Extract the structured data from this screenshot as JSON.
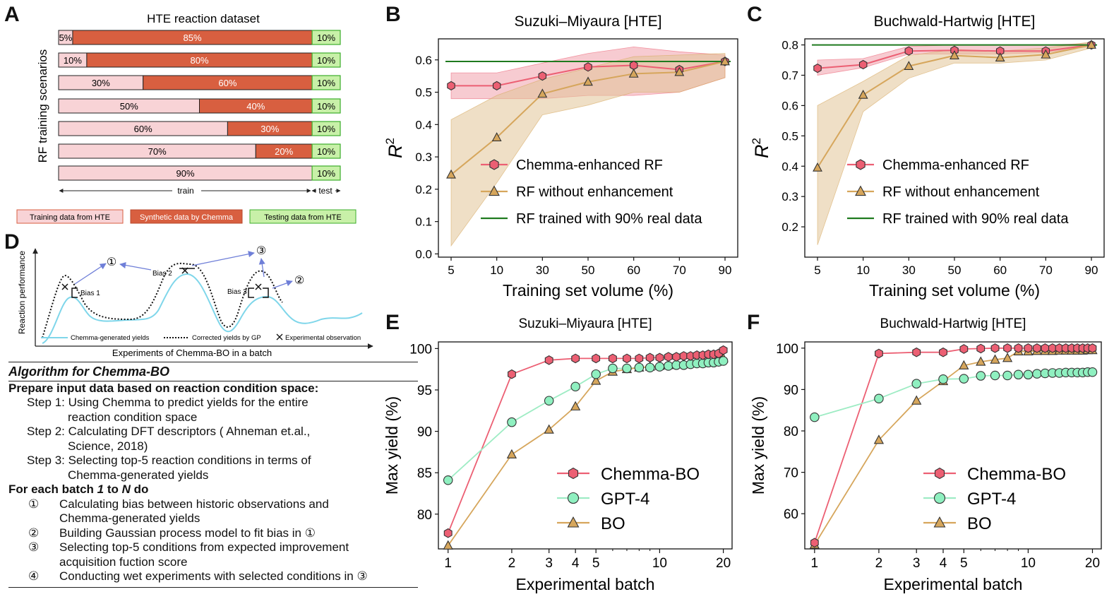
{
  "panel_letters": {
    "A": "A",
    "B": "B",
    "C": "C",
    "D": "D",
    "E": "E",
    "F": "F"
  },
  "panel_a": {
    "title": "HTE reaction dataset",
    "ylabel": "RF training scenarios",
    "train_label": "train",
    "test_label": "test",
    "legend": [
      "Training data from HTE",
      "Synthetic data by Chemma",
      "Testing data from HTE"
    ],
    "colors": {
      "train": "#f8d3d6",
      "synthetic": "#d85f40",
      "test": "#c8f0a8"
    },
    "rows": [
      {
        "train_pct": 5,
        "synthetic_pct": 85,
        "test_pct": 10,
        "train_label": "5%",
        "synthetic_label": "85%",
        "test_label": "10%"
      },
      {
        "train_pct": 10,
        "synthetic_pct": 80,
        "test_pct": 10,
        "train_label": "10%",
        "synthetic_label": "80%",
        "test_label": "10%"
      },
      {
        "train_pct": 30,
        "synthetic_pct": 60,
        "test_pct": 10,
        "train_label": "30%",
        "synthetic_label": "60%",
        "test_label": "10%"
      },
      {
        "train_pct": 50,
        "synthetic_pct": 40,
        "test_pct": 10,
        "train_label": "50%",
        "synthetic_label": "40%",
        "test_label": "10%"
      },
      {
        "train_pct": 60,
        "synthetic_pct": 30,
        "test_pct": 10,
        "train_label": "60%",
        "synthetic_label": "30%",
        "test_label": "10%"
      },
      {
        "train_pct": 70,
        "synthetic_pct": 20,
        "test_pct": 10,
        "train_label": "70%",
        "synthetic_label": "20%",
        "test_label": "10%"
      },
      {
        "train_pct": 90,
        "synthetic_pct": 0,
        "test_pct": 10,
        "train_label": "90%",
        "synthetic_label": "",
        "test_label": "10%"
      }
    ]
  },
  "panel_d": {
    "ylabel": "Reaction performance",
    "xlabel": "Experiments of Chemma-BO in a batch",
    "bias_labels": [
      "Bias 1",
      "Bias 2",
      "Bias 3"
    ],
    "step_marks": [
      "①",
      "②",
      "③"
    ],
    "legend": [
      "Chemma-generated yields",
      "Corrected yields by GP",
      "Experimental observation"
    ]
  },
  "algorithm": {
    "title": "Algorithm for Chemma-BO",
    "prepare": "Prepare input data based on reaction condition space:",
    "steps": [
      {
        "label": "Step 1: Using Chemma to predict yields for the entire",
        "cont": "reaction condition space"
      },
      {
        "label": "Step 2: Calculating DFT descriptors ( Ahneman et.al.,",
        "cont": "Science, 2018)"
      },
      {
        "label": "Step 3: Selecting top-5 reaction conditions in terms of",
        "cont": "Chemma-generated yields"
      }
    ],
    "loop_a": "For each batch ",
    "loop_b": "1",
    "loop_c": " to ",
    "loop_d": "N",
    "loop_e": " do",
    "loop_steps": [
      {
        "num": "①",
        "text": "Calculating bias between historic observations and",
        "cont": "Chemma-generated yields"
      },
      {
        "num": "②",
        "text": "Building Gaussian process model to fit bias in ①",
        "cont": ""
      },
      {
        "num": "③",
        "text": "Selecting top-5 conditions from expected improvement",
        "cont": "acquisition fuction score"
      },
      {
        "num": "④",
        "text": "Conducting wet experiments with selected conditions in ③",
        "cont": ""
      }
    ]
  },
  "chart_data": [
    {
      "id": "B",
      "type": "line",
      "title": "Suzuki–Miyaura [HTE]",
      "xlabel": "Training set volume (%)",
      "ylabel": "R",
      "ylabel_sup": "2",
      "categories": [
        "5",
        "10",
        "30",
        "50",
        "60",
        "70",
        "90"
      ],
      "ylim": [
        -0.01,
        0.665
      ],
      "yticks": [
        0.0,
        0.1,
        0.2,
        0.3,
        0.4,
        0.5,
        0.6
      ],
      "ytick_labels": [
        "0.0",
        "0.1",
        "0.2",
        "0.3",
        "0.4",
        "0.5",
        "0.6"
      ],
      "series": [
        {
          "name": "Chemma-enhanced RF",
          "marker": "hexagon",
          "color": "#ec5f73",
          "fill": "#f0a1ac",
          "values": [
            0.52,
            0.52,
            0.55,
            0.578,
            0.583,
            0.57,
            0.595
          ],
          "lower": [
            0.48,
            0.48,
            0.48,
            0.49,
            0.49,
            0.5,
            0.545
          ],
          "upper": [
            0.56,
            0.56,
            0.59,
            0.62,
            0.64,
            0.625,
            0.615
          ]
        },
        {
          "name": "RF without enhancement",
          "marker": "triangle",
          "color": "#d6a65c",
          "fill": "#e2c597",
          "values": [
            0.245,
            0.36,
            0.495,
            0.532,
            0.557,
            0.562,
            0.595
          ],
          "lower": [
            0.025,
            0.22,
            0.43,
            0.46,
            0.5,
            0.5,
            0.545
          ],
          "upper": [
            0.415,
            0.49,
            0.54,
            0.575,
            0.61,
            0.615,
            0.62
          ]
        },
        {
          "name": "RF trained with 90% real data",
          "marker": "none",
          "color": "#1f7a1f",
          "values": [
            0.595,
            0.595,
            0.595,
            0.595,
            0.595,
            0.595,
            0.595
          ]
        }
      ]
    },
    {
      "id": "C",
      "type": "line",
      "title": "Buchwald-Hartwig [HTE]",
      "xlabel": "Training set volume (%)",
      "ylabel": "R",
      "ylabel_sup": "2",
      "categories": [
        "5",
        "10",
        "30",
        "50",
        "60",
        "70",
        "90"
      ],
      "ylim": [
        0.1,
        0.82
      ],
      "yticks": [
        0.2,
        0.3,
        0.4,
        0.5,
        0.6,
        0.7,
        0.8
      ],
      "ytick_labels": [
        "0.2",
        "0.3",
        "0.4",
        "0.5",
        "0.6",
        "0.7",
        "0.8"
      ],
      "series": [
        {
          "name": "Chemma-enhanced RF",
          "marker": "hexagon",
          "color": "#ec5f73",
          "fill": "#f0a1ac",
          "values": [
            0.723,
            0.735,
            0.78,
            0.782,
            0.78,
            0.78,
            0.8
          ],
          "lower": [
            0.7,
            0.725,
            0.77,
            0.77,
            0.77,
            0.775,
            0.795
          ],
          "upper": [
            0.75,
            0.755,
            0.795,
            0.8,
            0.8,
            0.8,
            0.805
          ]
        },
        {
          "name": "RF without enhancement",
          "marker": "triangle",
          "color": "#d6a65c",
          "fill": "#e2c597",
          "values": [
            0.395,
            0.635,
            0.73,
            0.765,
            0.758,
            0.768,
            0.8
          ],
          "lower": [
            0.14,
            0.58,
            0.69,
            0.74,
            0.74,
            0.75,
            0.79
          ],
          "upper": [
            0.6,
            0.68,
            0.765,
            0.785,
            0.78,
            0.79,
            0.81
          ]
        },
        {
          "name": "RF trained with 90% real data",
          "marker": "none",
          "color": "#1f7a1f",
          "values": [
            0.8,
            0.8,
            0.8,
            0.8,
            0.8,
            0.8,
            0.8
          ]
        }
      ]
    },
    {
      "id": "E",
      "type": "line",
      "xscale": "log",
      "title": "Suzuki–Miyaura [HTE]",
      "xlabel": "Experimental batch",
      "ylabel": "Max yield (%)",
      "xlim": [
        0.9,
        22
      ],
      "xticks": [
        1,
        2,
        3,
        4,
        5,
        10,
        20
      ],
      "xtick_labels": [
        "1",
        "2",
        "3",
        "4",
        "5",
        "10",
        "20"
      ],
      "ylim": [
        75.8,
        100.8
      ],
      "yticks": [
        80,
        85,
        90,
        95,
        100
      ],
      "ytick_labels": [
        "80",
        "85",
        "90",
        "95",
        "100"
      ],
      "x": [
        1,
        2,
        3,
        4,
        5,
        6,
        7,
        8,
        9,
        10,
        11,
        12,
        13,
        14,
        15,
        16,
        17,
        18,
        19,
        20
      ],
      "series": [
        {
          "name": "Chemma-BO",
          "marker": "hexagon",
          "color": "#ec5f73",
          "values": [
            77.7,
            96.9,
            98.6,
            98.8,
            98.8,
            98.8,
            98.8,
            98.8,
            98.9,
            98.9,
            99.0,
            99.0,
            99.1,
            99.1,
            99.2,
            99.2,
            99.3,
            99.3,
            99.4,
            99.8
          ]
        },
        {
          "name": "GPT-4",
          "marker": "circle",
          "color": "#7ee6b0",
          "values": [
            84.1,
            91.1,
            93.7,
            95.4,
            96.9,
            97.6,
            97.6,
            97.7,
            97.7,
            97.8,
            97.9,
            98.0,
            98.0,
            98.1,
            98.2,
            98.2,
            98.3,
            98.3,
            98.4,
            98.5
          ]
        },
        {
          "name": "BO",
          "marker": "triangle",
          "color": "#d6a65c",
          "values": [
            76.2,
            87.2,
            90.2,
            93.0,
            96.1,
            97.2,
            97.5,
            97.7,
            97.8,
            97.9,
            98.0,
            98.1,
            98.2,
            98.3,
            98.4,
            98.5,
            98.5,
            98.6,
            98.6,
            98.8
          ]
        }
      ]
    },
    {
      "id": "F",
      "type": "line",
      "xscale": "log",
      "title": "Buchwald-Hartwig [HTE]",
      "xlabel": "Experimental batch",
      "ylabel": "Max yield (%)",
      "xlim": [
        0.9,
        22
      ],
      "xticks": [
        1,
        2,
        3,
        4,
        5,
        10,
        20
      ],
      "xtick_labels": [
        "1",
        "2",
        "3",
        "4",
        "5",
        "10",
        "20"
      ],
      "ylim": [
        51.5,
        101.5
      ],
      "yticks": [
        60,
        70,
        80,
        90,
        100
      ],
      "ytick_labels": [
        "60",
        "70",
        "80",
        "90",
        "100"
      ],
      "x": [
        1,
        2,
        3,
        4,
        5,
        6,
        7,
        8,
        9,
        10,
        11,
        12,
        13,
        14,
        15,
        16,
        17,
        18,
        19,
        20
      ],
      "series": [
        {
          "name": "Chemma-BO",
          "marker": "hexagon",
          "color": "#ec5f73",
          "values": [
            53.0,
            98.7,
            99.0,
            99.0,
            99.8,
            99.9,
            100,
            100,
            100,
            100,
            100,
            100,
            100,
            100,
            100,
            100,
            100,
            100,
            100,
            100
          ]
        },
        {
          "name": "GPT-4",
          "marker": "circle",
          "color": "#7ee6b0",
          "values": [
            83.3,
            87.8,
            91.4,
            92.5,
            92.6,
            93.3,
            93.4,
            93.4,
            93.6,
            93.6,
            93.8,
            93.9,
            94.0,
            94.0,
            94.1,
            94.1,
            94.1,
            94.1,
            94.2,
            94.2
          ]
        },
        {
          "name": "BO",
          "marker": "triangle",
          "color": "#d6a65c",
          "values": [
            52.5,
            77.8,
            87.3,
            92.0,
            95.8,
            96.7,
            97.2,
            97.6,
            99.2,
            99.2,
            99.3,
            99.3,
            99.3,
            99.4,
            99.4,
            99.4,
            99.4,
            99.4,
            99.5,
            99.5
          ]
        }
      ]
    }
  ]
}
